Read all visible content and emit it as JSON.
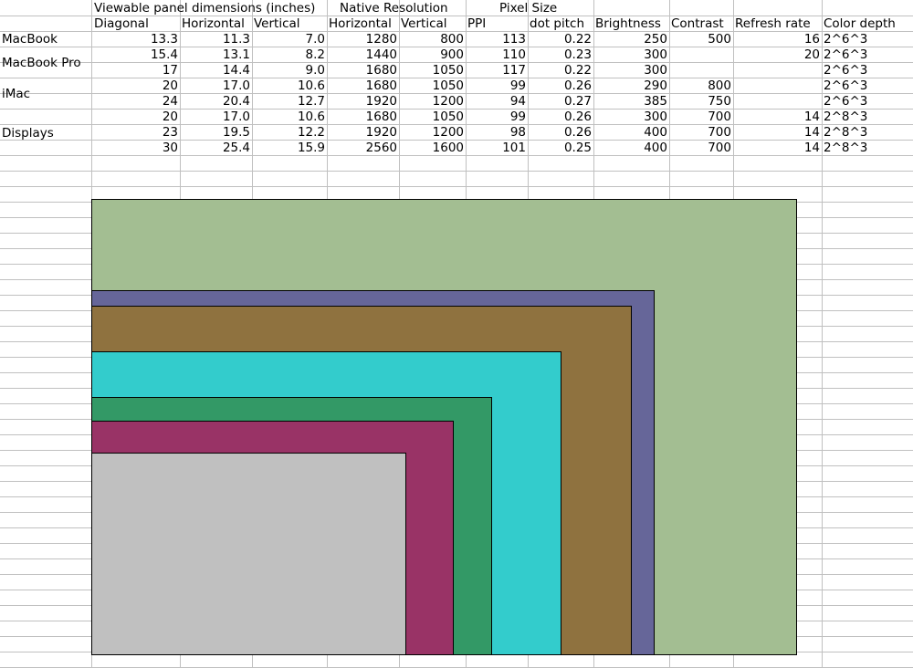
{
  "headers": {
    "viewable": "Viewable panel dimensions (inches)",
    "native": "Native Resolution",
    "pixel": "Pixel Size",
    "diagonal": "Diagonal",
    "horizontal": "Horizontal",
    "vertical": "Vertical",
    "res_horizontal": "Horizontal",
    "res_vertical": "Vertical",
    "ppi": "PPI",
    "dot_pitch": "dot pitch",
    "brightness": "Brightness",
    "contrast": "Contrast",
    "refresh": "Refresh rate",
    "color_depth": "Color depth"
  },
  "groups": [
    "MacBook",
    "MacBook Pro",
    "iMac",
    "Displays"
  ],
  "rows": [
    [
      "13.3",
      "11.3",
      "7.0",
      "1280",
      "800",
      "113",
      "0.22",
      "250",
      "500",
      "16",
      "2^6^3"
    ],
    [
      "15.4",
      "13.1",
      "8.2",
      "1440",
      "900",
      "110",
      "0.23",
      "300",
      "",
      "20",
      "2^6^3"
    ],
    [
      "17",
      "14.4",
      "9.0",
      "1680",
      "1050",
      "117",
      "0.22",
      "300",
      "",
      "",
      "2^6^3"
    ],
    [
      "20",
      "17.0",
      "10.6",
      "1680",
      "1050",
      "99",
      "0.26",
      "290",
      "800",
      "",
      "2^6^3"
    ],
    [
      "24",
      "20.4",
      "12.7",
      "1920",
      "1200",
      "94",
      "0.27",
      "385",
      "750",
      "",
      "2^6^3"
    ],
    [
      "20",
      "17.0",
      "10.6",
      "1680",
      "1050",
      "99",
      "0.26",
      "300",
      "700",
      "14",
      "2^8^3"
    ],
    [
      "23",
      "19.5",
      "12.2",
      "1920",
      "1200",
      "98",
      "0.26",
      "400",
      "700",
      "14",
      "2^8^3"
    ],
    [
      "30",
      "25.4",
      "15.9",
      "2560",
      "1600",
      "101",
      "0.25",
      "400",
      "700",
      "14",
      "2^8^3"
    ]
  ],
  "colors": {
    "gridline": "#c0c0c0",
    "green": "#a3be92",
    "purple": "#666699",
    "brown": "#8f723f",
    "cyan": "#33cccc",
    "teal": "#339966",
    "magenta": "#993366",
    "gray": "#c0c0c0"
  }
}
